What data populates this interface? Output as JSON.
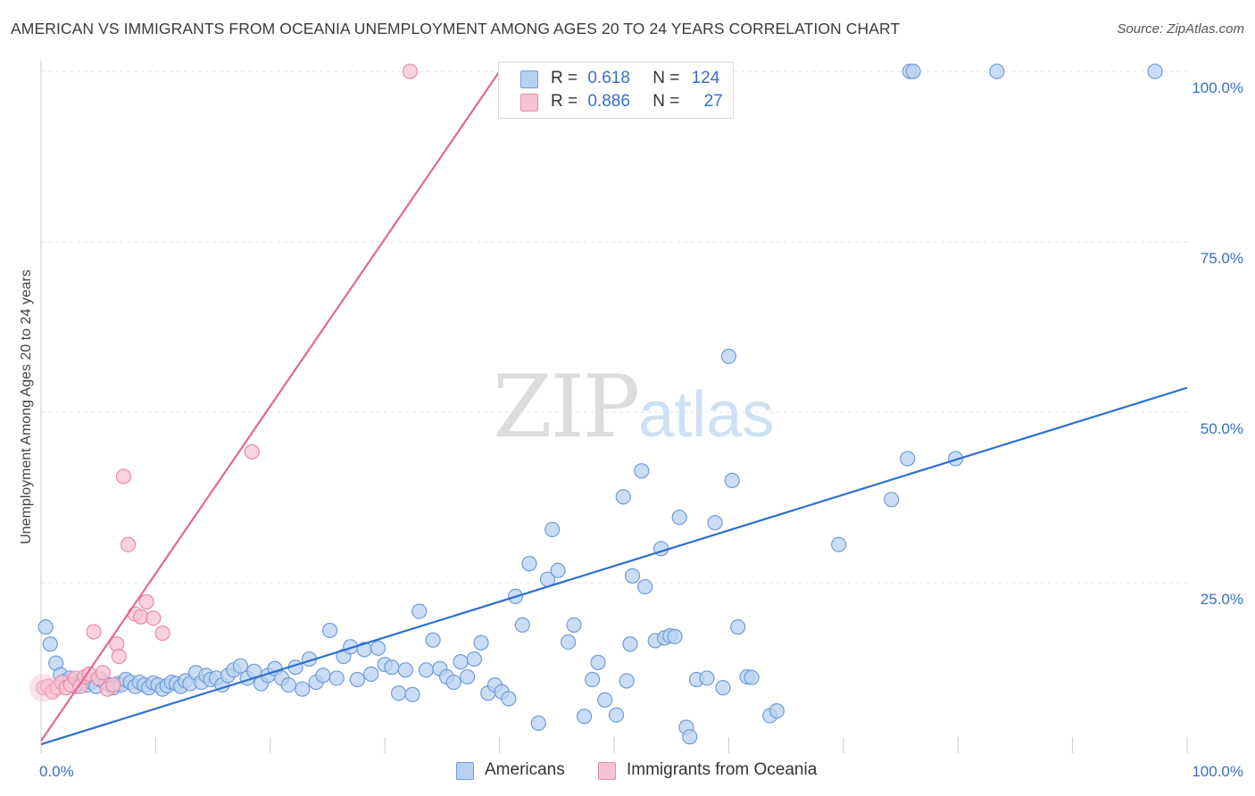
{
  "title": "AMERICAN VS IMMIGRANTS FROM OCEANIA UNEMPLOYMENT AMONG AGES 20 TO 24 YEARS CORRELATION CHART",
  "source": "Source: ZipAtlas.com",
  "watermark": {
    "zip": "ZIP",
    "atlas": "atlas"
  },
  "legend": {
    "americans": {
      "r_label": "R =",
      "r_value": "0.618",
      "n_label": "N =",
      "n_value": "124"
    },
    "oceania": {
      "r_label": "R =",
      "r_value": "0.886",
      "n_label": "N =",
      "n_value": "27"
    }
  },
  "bottom_legend": {
    "americans": "Americans",
    "oceania": "Immigrants from Oceania"
  },
  "colors": {
    "blue_fill": "#b9d1f1",
    "blue_stroke": "#6f9bd8",
    "blue_line": "#2f6fce",
    "pink_fill": "#f7c3d2",
    "pink_stroke": "#e98aa8",
    "pink_line": "#e0679a",
    "tick_blue": "#3a6fc4",
    "grid": "#e3e3e3"
  },
  "chart_data": {
    "type": "scatter",
    "title": "AMERICAN VS IMMIGRANTS FROM OCEANIA UNEMPLOYMENT AMONG AGES 20 TO 24 YEARS CORRELATION CHART",
    "xlabel": "",
    "ylabel": "Unemployment Among Ages 20 to 24 years",
    "xlim": [
      0,
      100
    ],
    "ylim": [
      0,
      100
    ],
    "x_tick_labels": [
      "0.0%",
      "100.0%"
    ],
    "y_ticks": [
      25,
      50,
      75,
      100
    ],
    "y_tick_labels": [
      "25.0%",
      "50.0%",
      "75.0%",
      "100.0%"
    ],
    "grid": true,
    "series": [
      {
        "name": "Americans",
        "r": 0.618,
        "n": 124,
        "trend": {
          "x": [
            0,
            100
          ],
          "y": [
            1.3,
            53.6
          ]
        },
        "points": [
          [
            0.4,
            18.5
          ],
          [
            0.8,
            16.0
          ],
          [
            1.3,
            13.2
          ],
          [
            1.7,
            11.5
          ],
          [
            2.0,
            10.5
          ],
          [
            2.5,
            11.0
          ],
          [
            3.0,
            9.8
          ],
          [
            3.3,
            10.2
          ],
          [
            3.6,
            10.6
          ],
          [
            4.0,
            10.0
          ],
          [
            4.4,
            10.4
          ],
          [
            4.8,
            9.8
          ],
          [
            5.2,
            10.8
          ],
          [
            5.6,
            10.3
          ],
          [
            6.0,
            10.0
          ],
          [
            6.3,
            9.6
          ],
          [
            6.7,
            10.2
          ],
          [
            7.0,
            10.0
          ],
          [
            7.4,
            10.8
          ],
          [
            7.8,
            10.4
          ],
          [
            8.2,
            9.8
          ],
          [
            8.6,
            10.4
          ],
          [
            9.0,
            10.0
          ],
          [
            9.4,
            9.6
          ],
          [
            9.8,
            10.3
          ],
          [
            10.2,
            10.0
          ],
          [
            10.6,
            9.4
          ],
          [
            11.0,
            9.9
          ],
          [
            11.4,
            10.4
          ],
          [
            11.8,
            10.2
          ],
          [
            12.2,
            9.8
          ],
          [
            12.6,
            10.6
          ],
          [
            13.0,
            10.2
          ],
          [
            13.5,
            11.8
          ],
          [
            14.0,
            10.4
          ],
          [
            14.4,
            11.4
          ],
          [
            14.8,
            10.8
          ],
          [
            15.3,
            11.0
          ],
          [
            15.8,
            10.0
          ],
          [
            16.3,
            11.4
          ],
          [
            16.8,
            12.2
          ],
          [
            17.4,
            12.8
          ],
          [
            18.0,
            11.0
          ],
          [
            18.6,
            12.0
          ],
          [
            19.2,
            10.2
          ],
          [
            19.8,
            11.4
          ],
          [
            20.4,
            12.4
          ],
          [
            21.0,
            11.0
          ],
          [
            21.6,
            10.0
          ],
          [
            22.2,
            12.6
          ],
          [
            22.8,
            9.4
          ],
          [
            23.4,
            13.8
          ],
          [
            24.0,
            10.4
          ],
          [
            24.6,
            11.4
          ],
          [
            25.2,
            18.0
          ],
          [
            25.8,
            11.0
          ],
          [
            26.4,
            14.2
          ],
          [
            27.0,
            15.6
          ],
          [
            27.6,
            10.8
          ],
          [
            28.2,
            15.2
          ],
          [
            28.8,
            11.6
          ],
          [
            29.4,
            15.4
          ],
          [
            30.0,
            13.0
          ],
          [
            30.6,
            12.6
          ],
          [
            31.2,
            8.8
          ],
          [
            31.8,
            12.2
          ],
          [
            32.4,
            8.6
          ],
          [
            33.0,
            20.8
          ],
          [
            33.6,
            12.2
          ],
          [
            34.2,
            16.6
          ],
          [
            34.8,
            12.4
          ],
          [
            35.4,
            11.2
          ],
          [
            36.0,
            10.4
          ],
          [
            36.6,
            13.4
          ],
          [
            37.2,
            11.2
          ],
          [
            37.8,
            13.8
          ],
          [
            38.4,
            16.2
          ],
          [
            39.0,
            8.8
          ],
          [
            39.6,
            10.0
          ],
          [
            40.2,
            9.0
          ],
          [
            40.8,
            8.0
          ],
          [
            41.4,
            23.0
          ],
          [
            42.0,
            18.8
          ],
          [
            42.6,
            27.8
          ],
          [
            43.4,
            4.4
          ],
          [
            44.2,
            25.5
          ],
          [
            44.6,
            32.8
          ],
          [
            45.1,
            26.8
          ],
          [
            46.0,
            16.3
          ],
          [
            46.5,
            18.8
          ],
          [
            47.4,
            5.4
          ],
          [
            48.1,
            10.8
          ],
          [
            48.6,
            13.3
          ],
          [
            49.2,
            7.8
          ],
          [
            50.2,
            5.6
          ],
          [
            50.8,
            37.6
          ],
          [
            51.1,
            10.6
          ],
          [
            51.4,
            16.0
          ],
          [
            51.6,
            26.0
          ],
          [
            52.4,
            41.4
          ],
          [
            52.7,
            24.4
          ],
          [
            53.6,
            16.5
          ],
          [
            54.1,
            30.0
          ],
          [
            54.4,
            16.9
          ],
          [
            54.9,
            17.2
          ],
          [
            55.3,
            17.1
          ],
          [
            55.7,
            34.6
          ],
          [
            56.3,
            3.8
          ],
          [
            56.6,
            2.4
          ],
          [
            57.2,
            10.8
          ],
          [
            58.1,
            11.0
          ],
          [
            58.8,
            33.8
          ],
          [
            59.5,
            9.6
          ],
          [
            60.3,
            40.0
          ],
          [
            60.8,
            18.5
          ],
          [
            61.6,
            11.2
          ],
          [
            62.0,
            11.1
          ],
          [
            60.0,
            58.2
          ],
          [
            63.6,
            5.5
          ],
          [
            64.2,
            6.2
          ],
          [
            69.6,
            30.6
          ],
          [
            75.8,
            100.0
          ],
          [
            76.1,
            100.0
          ],
          [
            83.4,
            100.0
          ],
          [
            74.2,
            37.2
          ],
          [
            75.6,
            43.2
          ],
          [
            79.8,
            43.2
          ],
          [
            97.2,
            100.0
          ]
        ]
      },
      {
        "name": "Immigrants from Oceania",
        "r": 0.886,
        "n": 27,
        "trend": {
          "x": [
            0,
            40
          ],
          "y": [
            1.8,
            100.0
          ]
        },
        "points": [
          [
            0.2,
            9.6
          ],
          [
            0.6,
            9.8
          ],
          [
            1.0,
            9.0
          ],
          [
            1.4,
            9.6
          ],
          [
            1.8,
            10.4
          ],
          [
            2.2,
            9.6
          ],
          [
            2.6,
            10.0
          ],
          [
            3.0,
            11.0
          ],
          [
            3.4,
            9.8
          ],
          [
            3.8,
            11.2
          ],
          [
            4.2,
            11.6
          ],
          [
            4.6,
            17.8
          ],
          [
            5.0,
            11.0
          ],
          [
            5.4,
            11.8
          ],
          [
            5.8,
            9.4
          ],
          [
            6.3,
            10.0
          ],
          [
            6.6,
            16.0
          ],
          [
            6.8,
            14.2
          ],
          [
            7.2,
            40.6
          ],
          [
            7.6,
            30.6
          ],
          [
            8.2,
            20.4
          ],
          [
            8.7,
            20.0
          ],
          [
            9.2,
            22.2
          ],
          [
            9.8,
            19.8
          ],
          [
            10.6,
            17.6
          ],
          [
            18.4,
            44.2
          ],
          [
            32.2,
            100.0
          ]
        ]
      }
    ]
  }
}
